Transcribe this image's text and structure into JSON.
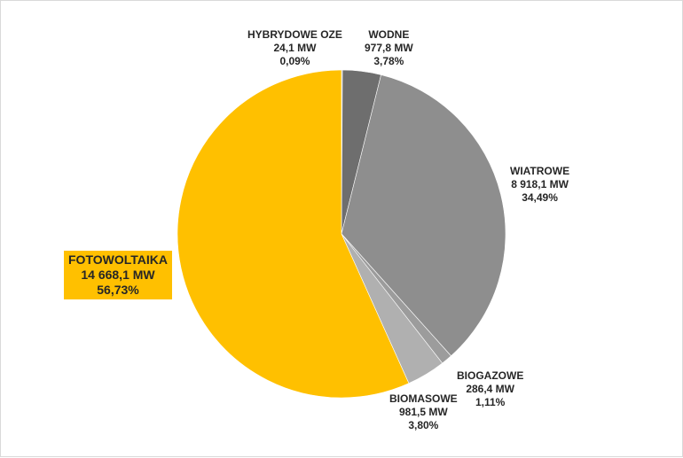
{
  "chart_data": {
    "type": "pie",
    "slices": [
      {
        "name": "HYBRYDOWE  OZE",
        "value_text": "24,1  MW",
        "percent_text": "0,09%",
        "value": 24.1,
        "percent": 0.09,
        "color": "#808080"
      },
      {
        "name": "WODNE",
        "value_text": "977,8 MW",
        "percent_text": "3,78%",
        "value": 977.8,
        "percent": 3.78,
        "color": "#6e6e6e"
      },
      {
        "name": "WIATROWE",
        "value_text": "8 918,1 MW",
        "percent_text": "34,49%",
        "value": 8918.1,
        "percent": 34.49,
        "color": "#8e8e8e"
      },
      {
        "name": "BIOGAZOWE",
        "value_text": "286,4  MW",
        "percent_text": "1,11%",
        "value": 286.4,
        "percent": 1.11,
        "color": "#9c9c9c"
      },
      {
        "name": "BIOMASOWE",
        "value_text": "981,5 MW",
        "percent_text": "3,80%",
        "value": 981.5,
        "percent": 3.8,
        "color": "#b0b0b0"
      },
      {
        "name": "FOTOWOLTAIKA",
        "value_text": "14 668,1 MW",
        "percent_text": "56,73%",
        "value": 14668.1,
        "percent": 56.73,
        "color": "#ffc000"
      }
    ]
  }
}
